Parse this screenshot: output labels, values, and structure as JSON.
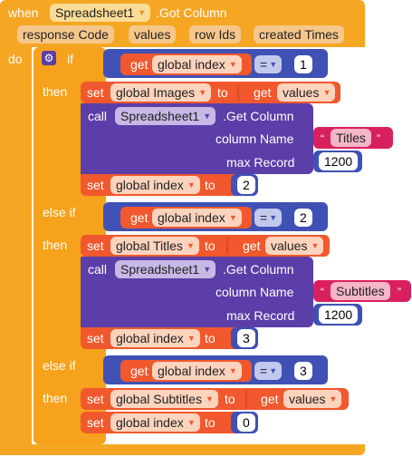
{
  "event": {
    "when_label": "when",
    "component": "Spreadsheet1",
    "event_name": ".Got Column",
    "params": [
      "response Code",
      "values",
      "row Ids",
      "created Times"
    ],
    "do_label": "do"
  },
  "if_block": {
    "if_label": "if",
    "then_label": "then",
    "else_if_label": "else if",
    "branches": [
      {
        "condition": {
          "get": "get",
          "var": "global index",
          "op": "=",
          "value": "1"
        },
        "set_label": "set",
        "to_label": "to",
        "set_var": "global Images",
        "set_value_get": "get",
        "set_value_var": "values",
        "call": {
          "call_label": "call",
          "component": "Spreadsheet1",
          "method": ".Get Column",
          "arg1_label": "column Name",
          "arg1_value": "Titles",
          "arg2_label": "max Record",
          "arg2_value": "1200"
        },
        "index_set": {
          "var": "global index",
          "value": "2"
        }
      },
      {
        "condition": {
          "get": "get",
          "var": "global index",
          "op": "=",
          "value": "2"
        },
        "set_label": "set",
        "to_label": "to",
        "set_var": "global Titles",
        "set_value_get": "get",
        "set_value_var": "values",
        "call": {
          "call_label": "call",
          "component": "Spreadsheet1",
          "method": ".Get Column",
          "arg1_label": "column Name",
          "arg1_value": "Subtitles",
          "arg2_label": "max Record",
          "arg2_value": "1200"
        },
        "index_set": {
          "var": "global index",
          "value": "3"
        }
      },
      {
        "condition": {
          "get": "get",
          "var": "global index",
          "op": "=",
          "value": "3"
        },
        "set_label": "set",
        "to_label": "to",
        "set_var": "global Subtitles",
        "set_value_get": "get",
        "set_value_var": "values",
        "index_set": {
          "var": "global index",
          "value": "0"
        }
      }
    ]
  },
  "colors": {
    "event": "#f5a623",
    "control": "#f6a21c",
    "variable": "#f1582d",
    "math": "#3f51b5",
    "component": "#5b3ea8",
    "text": "#d9205f"
  }
}
